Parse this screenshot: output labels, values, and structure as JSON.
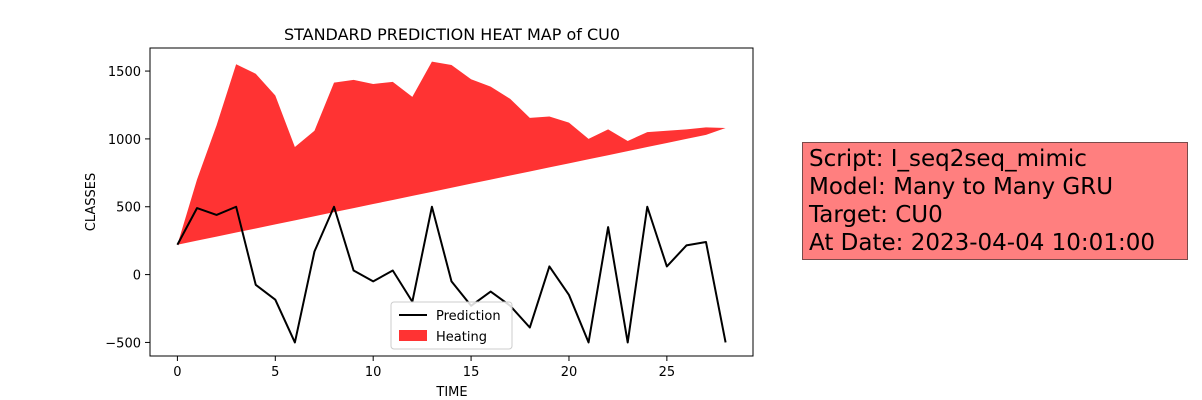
{
  "chart_data": {
    "type": "line",
    "title": "STANDARD PREDICTION HEAT MAP of CU0",
    "xlabel": "TIME",
    "ylabel": "CLASSES",
    "xlim": [
      -1.4,
      29.4
    ],
    "ylim": [
      -600,
      1670
    ],
    "xticks": [
      0,
      5,
      10,
      15,
      20,
      25
    ],
    "yticks": [
      -500,
      0,
      500,
      1000,
      1500
    ],
    "grid": false,
    "legend_position": "bottom-center",
    "series": [
      {
        "name": "Prediction",
        "type": "line",
        "color": "#000000",
        "x": [
          0,
          1,
          2,
          3,
          4,
          5,
          6,
          7,
          8,
          9,
          10,
          11,
          12,
          13,
          14,
          15,
          16,
          17,
          18,
          19,
          20,
          21,
          22,
          23,
          24,
          25,
          26,
          27,
          28
        ],
        "values": [
          220,
          490,
          440,
          500,
          -75,
          -185,
          -500,
          170,
          500,
          30,
          -50,
          30,
          -200,
          500,
          -50,
          -230,
          -125,
          -230,
          -390,
          60,
          -150,
          -500,
          350,
          -500,
          500,
          60,
          215,
          240,
          -500
        ]
      },
      {
        "name": "Heating",
        "type": "area",
        "color": "#ff3333",
        "x": [
          0,
          1,
          2,
          3,
          4,
          5,
          6,
          7,
          8,
          9,
          10,
          11,
          12,
          13,
          14,
          15,
          16,
          17,
          18,
          19,
          20,
          21,
          22,
          23,
          24,
          25,
          26,
          27,
          28
        ],
        "upper": [
          220,
          700,
          1100,
          1550,
          1480,
          1320,
          940,
          1060,
          1415,
          1435,
          1405,
          1420,
          1310,
          1570,
          1545,
          1440,
          1385,
          1295,
          1155,
          1165,
          1120,
          1000,
          1070,
          985,
          1050,
          1060,
          1070,
          1085,
          1080
        ],
        "lower": [
          220,
          250,
          280,
          310,
          340,
          370,
          400,
          430,
          460,
          490,
          520,
          550,
          580,
          610,
          640,
          670,
          700,
          730,
          760,
          790,
          820,
          850,
          880,
          910,
          940,
          970,
          1000,
          1030,
          1080
        ]
      }
    ]
  },
  "info": {
    "lines": [
      "Script: I_seq2seq_mimic",
      "Model: Many to Many GRU",
      "Target: CU0",
      "At Date: 2023-04-04 10:01:00"
    ],
    "background_color": "#ff7f7f"
  }
}
